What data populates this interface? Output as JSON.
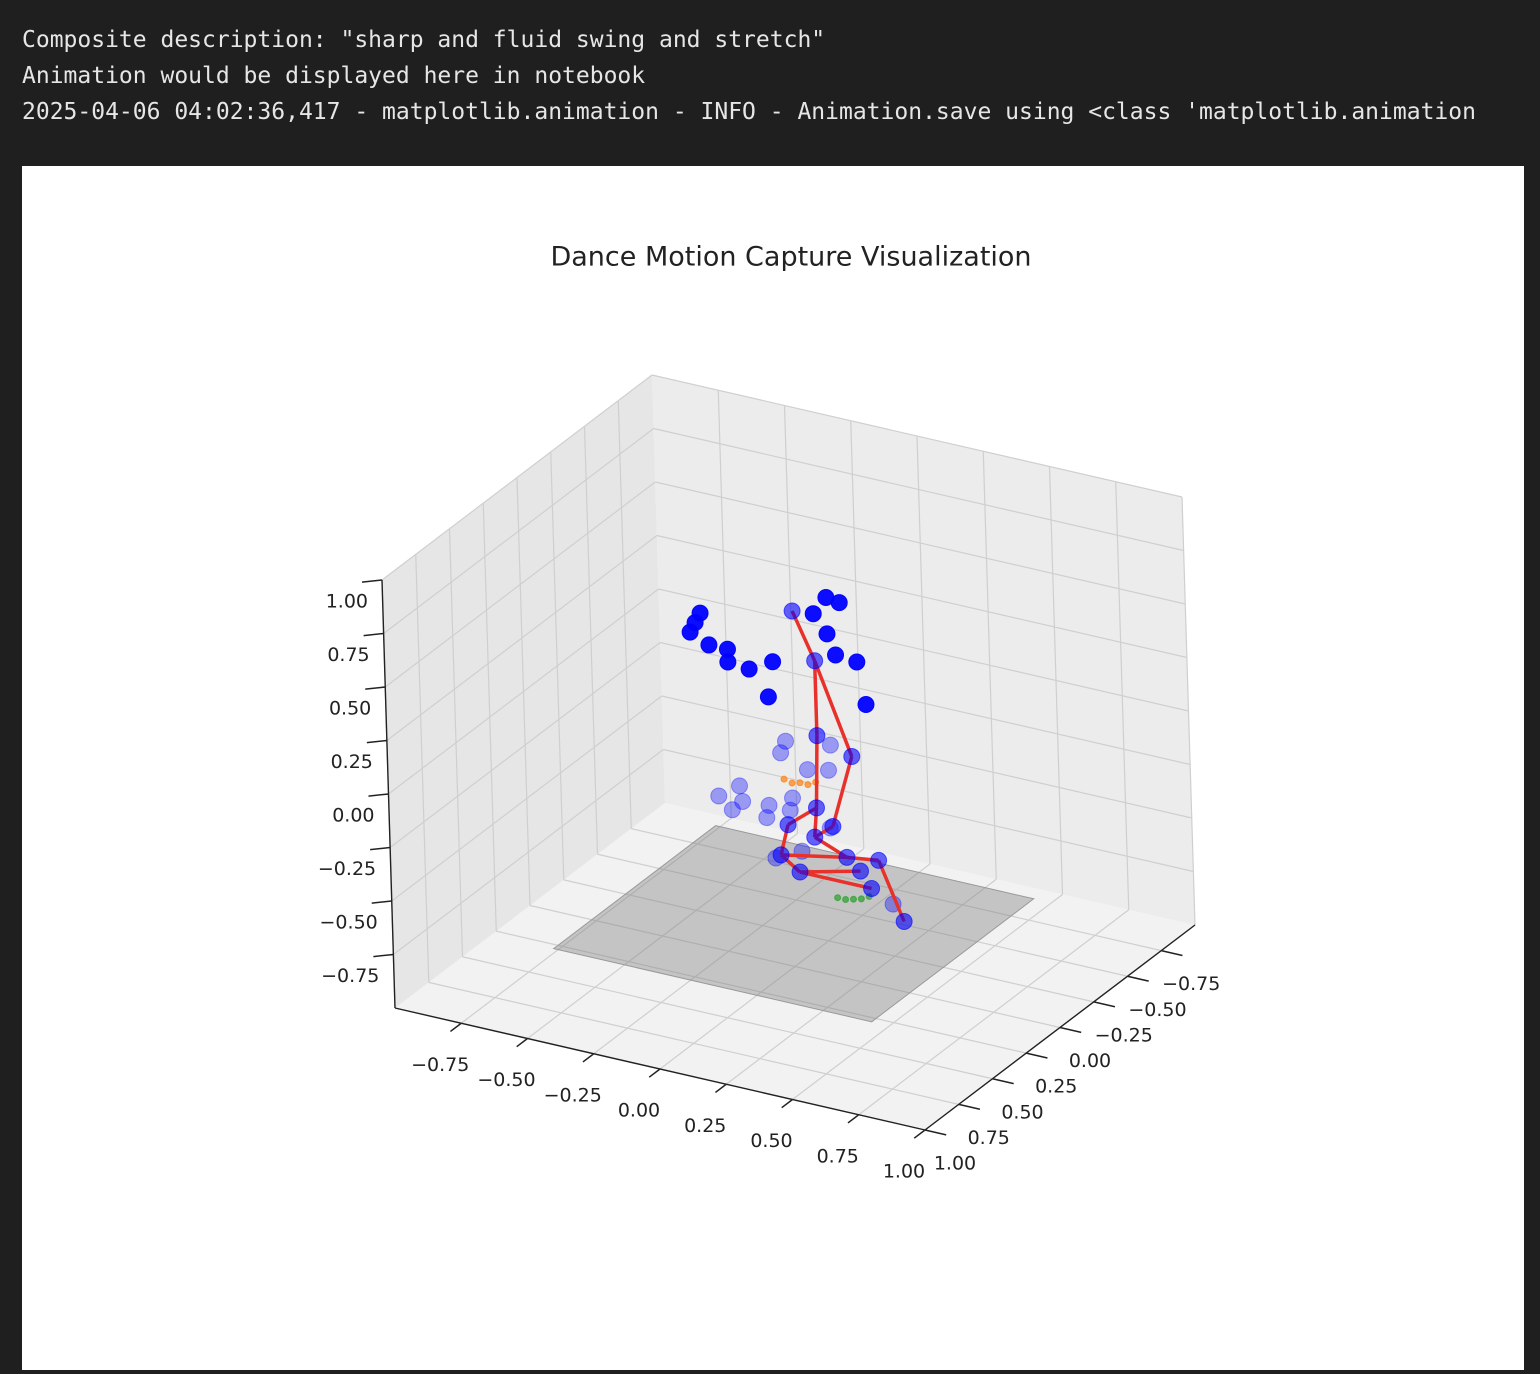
{
  "console": {
    "lines": [
      "Composite description: \"sharp and fluid swing and stretch\"",
      "Animation would be displayed here in notebook",
      "2025-04-06 04:02:36,417 - matplotlib.animation - INFO - Animation.save using <class 'matplotlib.animation"
    ]
  },
  "chart_data": {
    "type": "scatter3d",
    "title": "Dance Motion Capture Visualization",
    "xlim": [
      -1,
      1
    ],
    "ylim": [
      -1,
      1
    ],
    "zlim": [
      -1,
      1
    ],
    "xticks": [
      {
        "value": -0.75,
        "label": "−0.75"
      },
      {
        "value": -0.5,
        "label": "−0.50"
      },
      {
        "value": -0.25,
        "label": "−0.25"
      },
      {
        "value": 0,
        "label": "0.00"
      },
      {
        "value": 0.25,
        "label": "0.25"
      },
      {
        "value": 0.5,
        "label": "0.50"
      },
      {
        "value": 0.75,
        "label": "0.75"
      },
      {
        "value": 1,
        "label": "1.00"
      }
    ],
    "yticks": [
      {
        "value": -0.75,
        "label": "−0.75"
      },
      {
        "value": -0.5,
        "label": "−0.50"
      },
      {
        "value": -0.25,
        "label": "−0.25"
      },
      {
        "value": 0,
        "label": "0.00"
      },
      {
        "value": 0.25,
        "label": "0.25"
      },
      {
        "value": 0.5,
        "label": "0.50"
      },
      {
        "value": 0.75,
        "label": "0.75"
      },
      {
        "value": 1,
        "label": "1.00"
      }
    ],
    "zticks": [
      {
        "value": -0.75,
        "label": "−0.75"
      },
      {
        "value": -0.5,
        "label": "−0.50"
      },
      {
        "value": -0.25,
        "label": "−0.25"
      },
      {
        "value": 0,
        "label": "0.00"
      },
      {
        "value": 0.25,
        "label": "0.25"
      },
      {
        "value": 0.5,
        "label": "0.50"
      },
      {
        "value": 0.75,
        "label": "0.75"
      },
      {
        "value": 1,
        "label": "1.00"
      }
    ],
    "grid": true,
    "floor_plane": {
      "x": [
        -0.6,
        0.6
      ],
      "y": [
        -0.6,
        0.6
      ],
      "z": -0.8,
      "color": "#808080",
      "alpha": 0.4
    },
    "skeleton": {
      "x": [
        0.03,
        0.11,
        0.11,
        0.24,
        0.16,
        0.1,
        -0.01,
        0.09,
        -0.04,
        0.21,
        0.33,
        0.03,
        0.26,
        0.3,
        0.42
      ],
      "y": [
        0,
        0,
        0,
        0,
        0,
        0,
        0,
        0,
        0,
        0,
        0,
        0,
        0,
        0,
        0
      ],
      "z": [
        0.67,
        0.46,
        0.11,
        0.05,
        -0.3,
        -0.23,
        -0.34,
        -0.37,
        -0.49,
        -0.43,
        -0.41,
        -0.55,
        -0.48,
        -0.55,
        -0.67
      ],
      "color": "#0000ff",
      "alpha": 0.6,
      "bone_color": "#e8312a",
      "bones": [
        [
          0,
          1
        ],
        [
          1,
          2
        ],
        [
          2,
          5
        ],
        [
          1,
          3
        ],
        [
          3,
          4
        ],
        [
          5,
          6
        ],
        [
          5,
          7
        ],
        [
          6,
          8
        ],
        [
          7,
          9
        ],
        [
          8,
          9
        ],
        [
          9,
          10
        ],
        [
          10,
          14
        ],
        [
          8,
          11
        ],
        [
          11,
          12
        ],
        [
          11,
          13
        ],
        [
          7,
          4
        ]
      ]
    },
    "series": [
      {
        "color": "#0000ff",
        "alpha": 0.95,
        "marker": "large",
        "x": [
          -0.32,
          -0.34,
          -0.36,
          -0.29,
          -0.22,
          -0.22,
          -0.14,
          -0.05,
          -0.07,
          0.11,
          0.16,
          0.21,
          0.16,
          0.19,
          0.27,
          0.3
        ],
        "y": [
          0,
          0,
          0,
          0,
          0,
          0,
          0,
          0,
          0,
          0,
          0,
          0,
          0,
          0,
          0,
          0
        ],
        "z": [
          0.56,
          0.51,
          0.46,
          0.42,
          0.42,
          0.36,
          0.35,
          0.41,
          0.24,
          0.68,
          0.77,
          0.76,
          0.6,
          0.51,
          0.5,
          0.31
        ]
      },
      {
        "color": "#0000ff",
        "alpha": 0.35,
        "marker": "large",
        "x": [
          0.16,
          -0.01,
          -0.03,
          0.15,
          0.07,
          0.01,
          -0.08,
          -0.09,
          0.0,
          0.15,
          -0.06,
          0.04,
          0.38,
          -0.19,
          -0.27,
          -0.18,
          -0.22
        ],
        "y": [
          0,
          0,
          0,
          0,
          0,
          0,
          0,
          0,
          0,
          0,
          0,
          0,
          0,
          0,
          0,
          0,
          0
        ],
        "z": [
          0.08,
          0.05,
          -0.01,
          -0.04,
          -0.06,
          -0.21,
          -0.27,
          -0.33,
          -0.27,
          -0.31,
          -0.51,
          -0.45,
          -0.6,
          -0.21,
          -0.28,
          -0.28,
          -0.33
        ]
      },
      {
        "color": "#ff7f0e",
        "alpha": 0.7,
        "marker": "small",
        "x": [
          -0.02,
          0.01,
          0.04,
          0.07,
          0.1
        ],
        "y": [
          0,
          0,
          0,
          0,
          0
        ],
        "z": [
          -0.13,
          -0.14,
          -0.13,
          -0.13,
          -0.11
        ]
      },
      {
        "color": "#2ca02c",
        "alpha": 0.7,
        "marker": "small",
        "x": [
          0.17,
          0.2,
          0.23,
          0.26,
          0.29
        ],
        "y": [
          0,
          0,
          0,
          0,
          0
        ],
        "z": [
          -0.63,
          -0.63,
          -0.62,
          -0.61,
          -0.59
        ]
      }
    ]
  }
}
